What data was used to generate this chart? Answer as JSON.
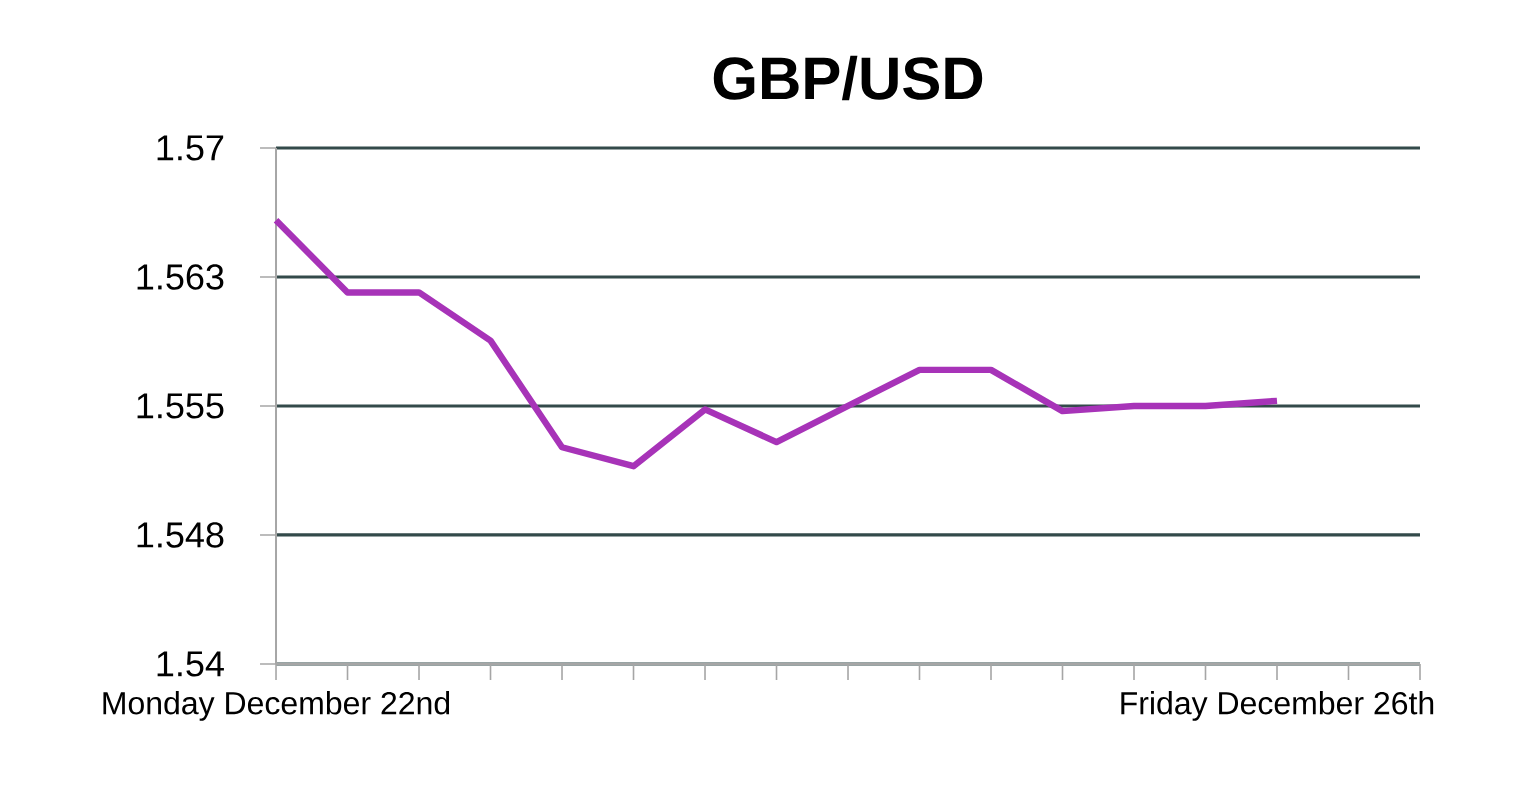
{
  "chart_data": {
    "type": "line",
    "title": "GBP/USD",
    "categories": [
      "Monday December 22nd",
      null,
      null,
      null,
      null,
      null,
      null,
      null,
      null,
      null,
      null,
      null,
      null,
      null,
      "Friday December 26th",
      null,
      null
    ],
    "series": [
      {
        "color": "#a733b8",
        "values": [
          1.5658,
          1.5616,
          1.5616,
          1.5588,
          1.5526,
          1.5515,
          1.5548,
          1.5529,
          1.555,
          1.5571,
          1.5571,
          1.5547,
          1.555,
          1.555,
          1.5553,
          null,
          null
        ]
      }
    ],
    "ylim": [
      1.54,
      1.57
    ],
    "yticks": [
      1.54,
      {
        "value": 1.5475,
        "label": "1.548"
      },
      1.555,
      {
        "value": 1.5625,
        "label": "1.563"
      },
      1.57
    ],
    "grid": "y",
    "marker": "none",
    "line_style": "solid"
  }
}
